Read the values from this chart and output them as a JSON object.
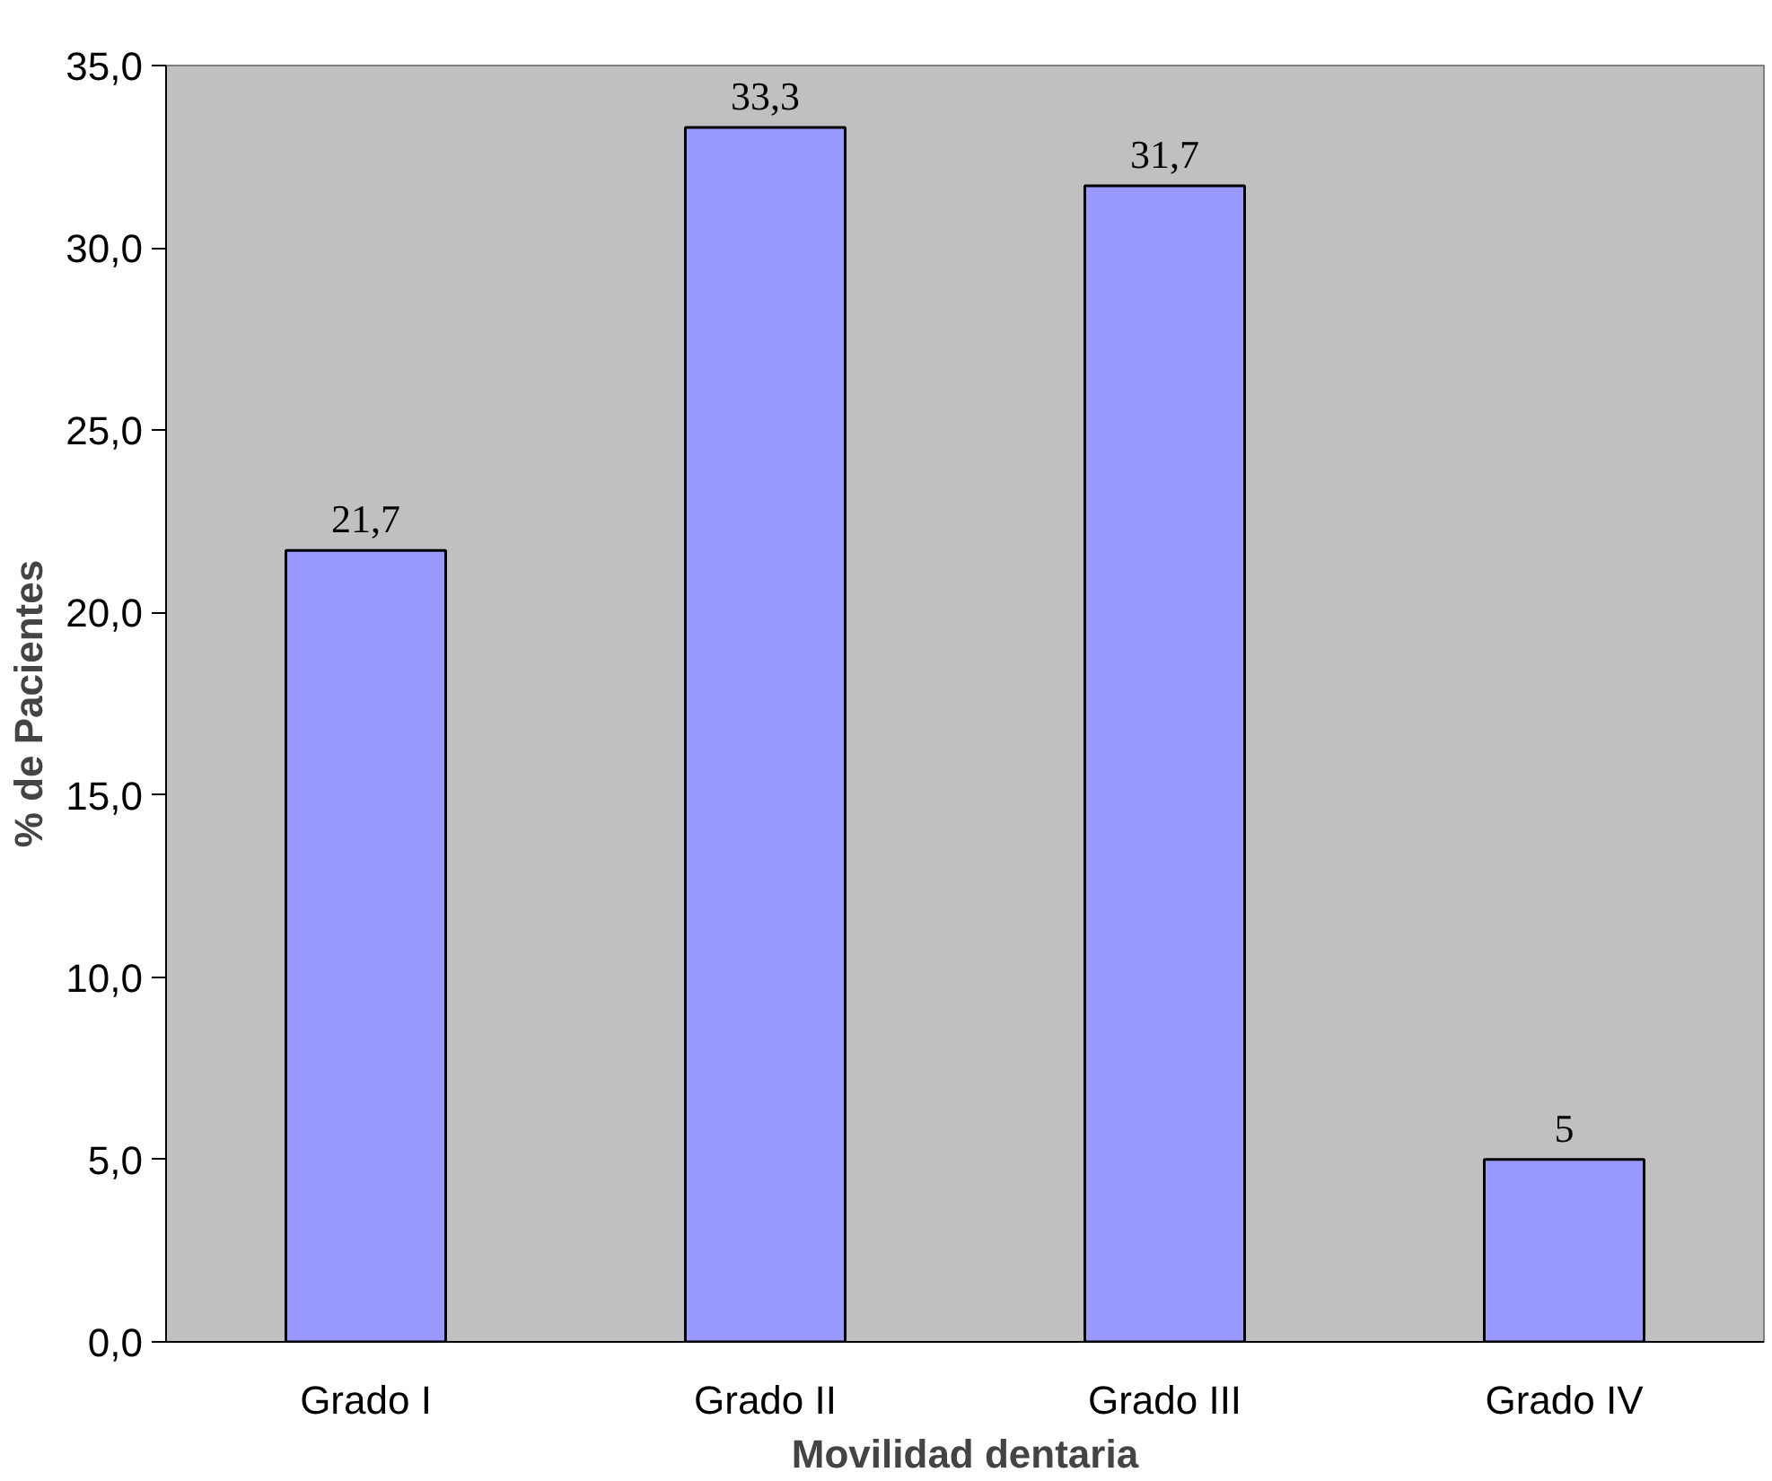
{
  "chart_data": {
    "type": "bar",
    "xlabel": "Movilidad dentaria",
    "ylabel": "% de Pacientes",
    "categories": [
      "Grado I",
      "Grado II",
      "Grado III",
      "Grado IV"
    ],
    "values": [
      21.7,
      33.3,
      31.7,
      5
    ],
    "value_labels": [
      "21,7",
      "33,3",
      "31,7",
      "5"
    ],
    "color": "#9999ff",
    "ylim": [
      0,
      35
    ],
    "yticks": [
      {
        "value": 0,
        "label": "0,0"
      },
      {
        "value": 5,
        "label": "5,0"
      },
      {
        "value": 10,
        "label": "10,0"
      },
      {
        "value": 15,
        "label": "15,0"
      },
      {
        "value": 20,
        "label": "20,0"
      },
      {
        "value": 25,
        "label": "25,0"
      },
      {
        "value": 30,
        "label": "30,0"
      },
      {
        "value": 35,
        "label": "35,0"
      }
    ],
    "grid": false
  }
}
